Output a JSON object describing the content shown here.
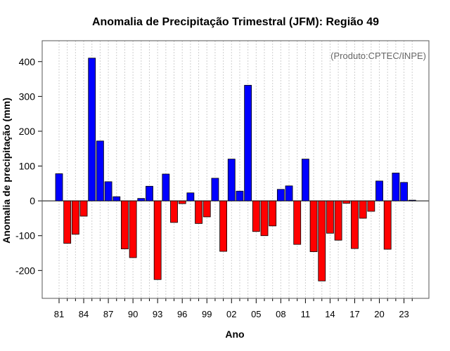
{
  "chart_data": {
    "type": "bar",
    "title": "Anomalia de Precipitação Trimestral (JFM): Região 49",
    "xlabel": "Ano",
    "ylabel": "Anomalia de precipitação (mm)",
    "annotation": "(Produto:CPTEC/INPE)",
    "years": [
      1981,
      1982,
      1983,
      1984,
      1985,
      1986,
      1987,
      1988,
      1989,
      1990,
      1991,
      1992,
      1993,
      1994,
      1995,
      1996,
      1997,
      1998,
      1999,
      2000,
      2001,
      2002,
      2003,
      2004,
      2005,
      2006,
      2007,
      2008,
      2009,
      2010,
      2011,
      2012,
      2013,
      2014,
      2015,
      2016,
      2017,
      2018,
      2019,
      2020,
      2021,
      2022,
      2023,
      2024
    ],
    "values": [
      78,
      -122,
      -96,
      -44,
      410,
      172,
      55,
      12,
      -138,
      -163,
      7,
      42,
      -226,
      77,
      -62,
      -8,
      23,
      -65,
      -46,
      65,
      -145,
      120,
      28,
      332,
      -88,
      -100,
      -72,
      33,
      43,
      -125,
      120,
      -146,
      -230,
      -93,
      -113,
      -7,
      -137,
      -50,
      -30,
      57,
      -139,
      80,
      53,
      2
    ],
    "tick_labels": [
      "81",
      "84",
      "87",
      "90",
      "93",
      "96",
      "99",
      "02",
      "05",
      "08",
      "11",
      "14",
      "17",
      "20",
      "23"
    ],
    "tick_every": 3,
    "ylim": [
      -280,
      460
    ],
    "yticks": [
      -200,
      -100,
      0,
      100,
      200,
      300,
      400
    ],
    "positive_color": "#0000ff",
    "negative_color": "#ff0000",
    "grid": true
  }
}
